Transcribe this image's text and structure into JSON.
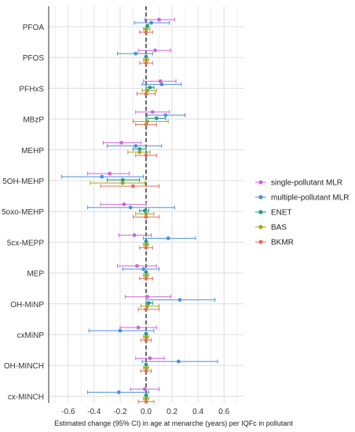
{
  "chart_data": {
    "type": "scatter",
    "subtype": "forest-plot",
    "xlabel": "Estimated change (95% CI) in age at menarche (years) per IQFc in pollutant",
    "ylabel": "",
    "xlim": [
      -0.75,
      0.75
    ],
    "x_ticks": [
      -0.6,
      -0.4,
      -0.2,
      0.0,
      0.2,
      0.4,
      0.6
    ],
    "x_tick_labels": [
      "-0.6",
      "-0.4",
      "-0.2",
      "0.0",
      "0.2",
      "0.4",
      "0.6"
    ],
    "reference_line": 0,
    "grid": true,
    "legend_position": "right",
    "categories": [
      "PFOA",
      "PFOS",
      "PFHxS",
      "MBzP",
      "MEHP",
      "5OH-MEHP",
      "5oxo-MEHP",
      "5cx-MEPP",
      "MEP",
      "OH-MiNP",
      "cxMiNP",
      "OH-MINCH",
      "cx-MINCH"
    ],
    "series": [
      {
        "name": "single-pollutant MLR",
        "color": "#cc66dd",
        "est": [
          0.1,
          0.07,
          0.11,
          0.05,
          -0.19,
          -0.28,
          -0.17,
          -0.09,
          -0.07,
          0.01,
          -0.06,
          0.03,
          -0.01
        ],
        "lower": [
          -0.01,
          -0.06,
          -0.02,
          -0.08,
          -0.33,
          -0.45,
          -0.35,
          -0.21,
          -0.22,
          -0.16,
          -0.2,
          -0.08,
          -0.12
        ],
        "upper": [
          0.22,
          0.19,
          0.23,
          0.18,
          -0.04,
          -0.13,
          0.0,
          0.04,
          0.08,
          0.19,
          0.08,
          0.14,
          0.1
        ]
      },
      {
        "name": "multiple-pollutant MLR",
        "color": "#4a90e2",
        "est": [
          0.04,
          -0.08,
          0.12,
          0.15,
          -0.08,
          -0.34,
          -0.12,
          0.17,
          -0.02,
          0.26,
          -0.2,
          0.25,
          -0.21
        ],
        "lower": [
          -0.09,
          -0.22,
          -0.03,
          0.01,
          -0.3,
          -0.65,
          -0.45,
          -0.02,
          -0.18,
          0.0,
          -0.44,
          -0.03,
          -0.45
        ],
        "upper": [
          0.18,
          0.05,
          0.27,
          0.3,
          0.12,
          -0.02,
          0.22,
          0.38,
          0.1,
          0.53,
          0.06,
          0.55,
          0.02
        ]
      },
      {
        "name": "ENET",
        "color": "#1f9a8a",
        "est": [
          0.01,
          0.0,
          0.03,
          0.08,
          -0.05,
          -0.18,
          -0.01,
          0.0,
          0.0,
          0.02,
          0.0,
          0.0,
          0.0
        ],
        "lower": [
          0.0,
          0.0,
          0.0,
          0.0,
          -0.1,
          -0.3,
          -0.05,
          0.0,
          0.0,
          0.0,
          0.0,
          0.0,
          0.0
        ],
        "upper": [
          0.02,
          0.0,
          0.06,
          0.15,
          0.0,
          -0.05,
          0.02,
          0.0,
          0.0,
          0.05,
          0.0,
          0.0,
          0.0
        ]
      },
      {
        "name": "BAS",
        "color": "#a3a320",
        "est": [
          0.0,
          0.0,
          0.01,
          0.01,
          -0.05,
          -0.18,
          0.0,
          0.0,
          0.0,
          0.01,
          0.0,
          0.0,
          0.0
        ],
        "lower": [
          -0.02,
          -0.02,
          -0.03,
          -0.1,
          -0.14,
          -0.43,
          -0.08,
          -0.02,
          -0.02,
          -0.04,
          -0.02,
          -0.02,
          -0.02
        ],
        "upper": [
          0.03,
          0.02,
          0.08,
          0.17,
          0.03,
          -0.01,
          0.06,
          0.02,
          0.02,
          0.1,
          0.02,
          0.02,
          0.02
        ]
      },
      {
        "name": "BKMR",
        "color": "#e0705a",
        "est": [
          0.0,
          0.0,
          0.0,
          0.0,
          0.0,
          -0.1,
          0.0,
          0.0,
          0.0,
          0.0,
          0.0,
          0.0,
          0.0
        ],
        "lower": [
          -0.05,
          -0.05,
          -0.07,
          -0.08,
          -0.08,
          -0.35,
          -0.1,
          -0.05,
          -0.05,
          -0.06,
          -0.04,
          -0.04,
          -0.06
        ],
        "upper": [
          0.05,
          0.05,
          0.07,
          0.08,
          0.08,
          0.1,
          0.1,
          0.05,
          0.05,
          0.1,
          0.04,
          0.04,
          0.06
        ]
      }
    ]
  }
}
